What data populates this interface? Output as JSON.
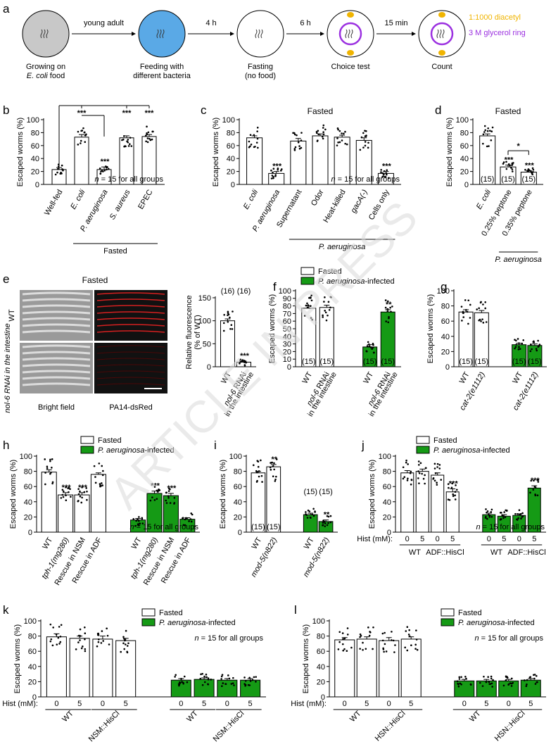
{
  "watermark": "ARTICLE IN PRESS",
  "panel_a": {
    "letter": "a",
    "steps": [
      {
        "top": "Growing on",
        "bottom": "E. coli food",
        "color": "#c8c8c8"
      },
      {
        "top": "Feeding with",
        "bottom": "different bacteria",
        "color": "#5aa9e6"
      },
      {
        "top": "Fasting",
        "bottom": "(no food)",
        "color": "#ffffff"
      },
      {
        "top": "Choice test",
        "bottom": "",
        "color": "#ffffff"
      },
      {
        "top": "Count",
        "bottom": "",
        "color": "#ffffff"
      }
    ],
    "arrows": [
      "young adult",
      "4 h",
      "6 h",
      "15 min"
    ],
    "legend": [
      {
        "label": "1:1000 diacetyl",
        "color": "#f0b400"
      },
      {
        "label": "3 M glycerol ring",
        "color": "#9b30e0"
      }
    ]
  },
  "colors": {
    "fasted": "#ffffff",
    "infected": "#159a15",
    "ring": "#9b30e0",
    "diacetyl": "#f0b400"
  },
  "legend_labels": {
    "fasted": "Fasted",
    "infected": "P. aeruginosa-infected"
  },
  "panel_e": {
    "letter": "e",
    "title": "Fasted",
    "row_labels": [
      "WT",
      "nol-6 RNAi in the intestine"
    ],
    "col_labels": [
      "Bright field",
      "PA14-dsRed"
    ]
  },
  "chart_data": [
    {
      "panel": "b",
      "type": "bar",
      "title": "",
      "ylabel": "Escaped worms (%)",
      "ylim": [
        0,
        100
      ],
      "yticks": [
        0,
        20,
        40,
        60,
        80,
        100
      ],
      "categories": [
        "Well-fed",
        "E. coli",
        "P. aeruginosa",
        "S. aureus",
        "EPEC"
      ],
      "values": [
        23,
        73,
        23,
        72,
        74
      ],
      "errors": [
        3,
        4,
        4,
        3,
        3
      ],
      "bar_colors": [
        "#ffffff",
        "#ffffff",
        "#ffffff",
        "#ffffff",
        "#ffffff"
      ],
      "annotations": [
        "",
        "",
        "***",
        "",
        ""
      ],
      "brackets": [
        {
          "label": "***",
          "from": 0,
          "to": 1
        },
        {
          "label": "***",
          "from": 0,
          "to": 3
        },
        {
          "label": "***",
          "from": 0,
          "to": 4
        },
        {
          "label": "***",
          "from": 1,
          "to": 2
        }
      ],
      "n_labels": [],
      "note": "n = 15 for all groups",
      "group_labels": [
        {
          "label": "Fasted",
          "from": 1,
          "to": 4
        }
      ]
    },
    {
      "panel": "c",
      "type": "bar",
      "title": "Fasted",
      "ylabel": "Escaped worms (%)",
      "ylim": [
        0,
        100
      ],
      "yticks": [
        0,
        20,
        40,
        60,
        80,
        100
      ],
      "categories": [
        "E. coli",
        "P. aeruginosa",
        "Supernatant",
        "Odor",
        "Heat-killed",
        "gacA(-)",
        "Cells only"
      ],
      "values": [
        72,
        17,
        67,
        75,
        73,
        68,
        17
      ],
      "errors": [
        3,
        3,
        4,
        3,
        3,
        4,
        3
      ],
      "bar_colors": [
        "#ffffff",
        "#ffffff",
        "#ffffff",
        "#ffffff",
        "#ffffff",
        "#ffffff",
        "#ffffff"
      ],
      "annotations": [
        "",
        "***",
        "",
        "",
        "",
        "",
        "***"
      ],
      "brackets": [],
      "n_labels": [],
      "note": "n = 15 for all groups",
      "group_labels": [
        {
          "label": "P. aeruginosa",
          "from": 2,
          "to": 6
        }
      ]
    },
    {
      "panel": "d",
      "type": "bar",
      "title": "Fasted",
      "ylabel": "Escaped worms (%)",
      "ylim": [
        0,
        100
      ],
      "yticks": [
        0,
        20,
        40,
        60,
        80,
        100
      ],
      "categories": [
        "E. coli",
        "0.25% peptone",
        "0.35% peptone"
      ],
      "values": [
        75,
        27,
        19
      ],
      "errors": [
        3,
        3,
        2
      ],
      "bar_colors": [
        "#ffffff",
        "#ffffff",
        "#ffffff"
      ],
      "annotations": [
        "",
        "***",
        "***"
      ],
      "brackets": [
        {
          "label": "*",
          "from": 1,
          "to": 2
        }
      ],
      "n_labels": [
        "(15)",
        "(15)",
        "(15)"
      ],
      "note": "",
      "group_labels": [
        {
          "label": "P. aeruginosa",
          "from": 1,
          "to": 2
        }
      ]
    },
    {
      "panel": "e2",
      "type": "bar",
      "title": "",
      "ylabel": "Relative fluorescence (% of WT)",
      "ylim": [
        0,
        150
      ],
      "yticks": [
        0,
        50,
        100,
        150
      ],
      "categories": [
        "WT",
        "nol-6 RNAi in the intestine"
      ],
      "values": [
        100,
        10
      ],
      "errors": [
        4,
        2
      ],
      "bar_colors": [
        "#ffffff",
        "#ffffff"
      ],
      "annotations": [
        "",
        "***"
      ],
      "brackets": [],
      "n_labels": [
        "(16)",
        "(16)"
      ],
      "note": "",
      "group_labels": []
    },
    {
      "panel": "f",
      "type": "bar",
      "title": "",
      "ylabel": "Escaped worms (%)",
      "ylim": [
        0,
        100
      ],
      "yticks": [
        0,
        10,
        20,
        30,
        40,
        50,
        60,
        70,
        80,
        90,
        100
      ],
      "categories": [
        "WT",
        "nol-6 RNAi in the intestine",
        "WT",
        "nol-6 RNAi in the intestine"
      ],
      "values": [
        77,
        78,
        26,
        72
      ],
      "errors": [
        3,
        3,
        3,
        3
      ],
      "bar_colors": [
        "#ffffff",
        "#ffffff",
        "#159a15",
        "#159a15"
      ],
      "annotations": [
        "",
        "",
        "",
        "**"
      ],
      "brackets": [],
      "n_labels": [
        "(15)",
        "(15)",
        "(15)",
        "(15)"
      ],
      "note": "",
      "group_labels": []
    },
    {
      "panel": "g",
      "type": "bar",
      "title": "",
      "ylabel": "Escaped worms (%)",
      "ylim": [
        0,
        100
      ],
      "yticks": [
        0,
        20,
        40,
        60,
        80,
        100
      ],
      "categories": [
        "WT",
        "cat-2(e1112)",
        "WT",
        "cat-2(e1112)"
      ],
      "values": [
        72,
        71,
        29,
        28
      ],
      "errors": [
        3,
        3,
        2,
        2
      ],
      "bar_colors": [
        "#ffffff",
        "#ffffff",
        "#159a15",
        "#159a15"
      ],
      "annotations": [
        "",
        "",
        "",
        ""
      ],
      "brackets": [],
      "n_labels": [
        "(15)",
        "(15)",
        "(15)",
        "(15)"
      ],
      "note": "",
      "group_labels": []
    },
    {
      "panel": "h",
      "type": "bar",
      "title": "",
      "ylabel": "Escaped worms (%)",
      "ylim": [
        0,
        100
      ],
      "yticks": [
        0,
        20,
        40,
        60,
        80,
        100
      ],
      "categories": [
        "WT",
        "tph-1(mg280)",
        "Rescue in NSM",
        "Rescue in ADF",
        "WT",
        "tph-1(mg280)",
        "Rescue in NSM",
        "Rescue in ADF"
      ],
      "values": [
        79,
        49,
        49,
        76,
        16,
        51,
        48,
        17
      ],
      "errors": [
        3,
        3,
        3,
        2,
        2,
        3,
        3,
        2
      ],
      "bar_colors": [
        "#ffffff",
        "#ffffff",
        "#ffffff",
        "#ffffff",
        "#159a15",
        "#159a15",
        "#159a15",
        "#159a15"
      ],
      "annotations": [
        "",
        "***",
        "***",
        "",
        "",
        "***",
        "***",
        ""
      ],
      "brackets": [],
      "n_labels": [],
      "note": "n = 15 for all groups",
      "group_labels": []
    },
    {
      "panel": "i",
      "type": "bar",
      "title": "",
      "ylabel": "Escaped worms (%)",
      "ylim": [
        0,
        100
      ],
      "yticks": [
        0,
        20,
        40,
        60,
        80,
        100
      ],
      "categories": [
        "WT",
        "mod-5(n822)",
        "WT",
        "mod-5(n822)"
      ],
      "values": [
        78,
        86,
        23,
        14
      ],
      "errors": [
        2,
        3,
        2,
        2
      ],
      "bar_colors": [
        "#ffffff",
        "#ffffff",
        "#159a15",
        "#159a15"
      ],
      "annotations": [
        "",
        "**",
        "",
        "**"
      ],
      "brackets": [],
      "n_labels": [
        "(15)",
        "(15)",
        "(15)",
        "(15)"
      ],
      "note": "",
      "group_labels": []
    },
    {
      "panel": "j",
      "type": "bar",
      "title": "",
      "ylabel": "Escaped worms (%)",
      "ylim": [
        0,
        100
      ],
      "yticks": [
        0,
        20,
        40,
        60,
        80,
        100
      ],
      "categories": [
        "0",
        "5",
        "0",
        "5",
        "0",
        "5",
        "0",
        "5"
      ],
      "values": [
        78,
        80,
        75,
        53,
        23,
        21,
        22,
        58
      ],
      "errors": [
        3,
        3,
        3,
        4,
        2,
        2,
        2,
        3
      ],
      "bar_colors": [
        "#ffffff",
        "#ffffff",
        "#ffffff",
        "#ffffff",
        "#159a15",
        "#159a15",
        "#159a15",
        "#159a15"
      ],
      "annotations": [
        "",
        "",
        "",
        "***",
        "",
        "",
        "",
        "***"
      ],
      "brackets": [],
      "n_labels": [],
      "note": "n = 15 for all groups",
      "xprefix": "Hist (mM):",
      "group_labels": [
        {
          "label": "WT",
          "from": 0,
          "to": 1
        },
        {
          "label": "ADF::HisCl",
          "from": 2,
          "to": 3
        },
        {
          "label": "WT",
          "from": 4,
          "to": 5
        },
        {
          "label": "ADF::HisCl",
          "from": 6,
          "to": 7
        }
      ]
    },
    {
      "panel": "k",
      "type": "bar",
      "title": "",
      "ylabel": "Escaped worms (%)",
      "ylim": [
        0,
        100
      ],
      "yticks": [
        0,
        20,
        40,
        60,
        80,
        100
      ],
      "categories": [
        "0",
        "5",
        "0",
        "5",
        "0",
        "5",
        "0",
        "5"
      ],
      "values": [
        79,
        77,
        76,
        74,
        22,
        23,
        22,
        22
      ],
      "errors": [
        4,
        3,
        4,
        3,
        2,
        2,
        2,
        2
      ],
      "bar_colors": [
        "#ffffff",
        "#ffffff",
        "#ffffff",
        "#ffffff",
        "#159a15",
        "#159a15",
        "#159a15",
        "#159a15"
      ],
      "annotations": [
        "",
        "",
        "",
        "",
        "",
        "",
        "",
        ""
      ],
      "brackets": [],
      "n_labels": [],
      "note": "n = 15 for all groups",
      "xprefix": "Hist (mM):",
      "group_labels": [
        {
          "label": "WT",
          "from": 0,
          "to": 1
        },
        {
          "label": "NSM::HisCl",
          "from": 2,
          "to": 3
        },
        {
          "label": "WT",
          "from": 4,
          "to": 5
        },
        {
          "label": "NSM::HisCl",
          "from": 6,
          "to": 7
        }
      ]
    },
    {
      "panel": "l",
      "type": "bar",
      "title": "",
      "ylabel": "Escaped worms (%)",
      "ylim": [
        0,
        100
      ],
      "yticks": [
        0,
        20,
        40,
        60,
        80,
        100
      ],
      "categories": [
        "0",
        "5",
        "0",
        "5",
        "0",
        "5",
        "0",
        "5"
      ],
      "values": [
        75,
        76,
        74,
        76,
        21,
        21,
        21,
        22
      ],
      "errors": [
        3,
        3,
        4,
        3,
        2,
        2,
        2,
        2
      ],
      "bar_colors": [
        "#ffffff",
        "#ffffff",
        "#ffffff",
        "#ffffff",
        "#159a15",
        "#159a15",
        "#159a15",
        "#159a15"
      ],
      "annotations": [
        "",
        "",
        "",
        "",
        "",
        "",
        "",
        ""
      ],
      "brackets": [],
      "n_labels": [],
      "note": "n = 15 for all groups",
      "xprefix": "Hist (mM):",
      "group_labels": [
        {
          "label": "WT",
          "from": 0,
          "to": 1
        },
        {
          "label": "HSN::HisCl",
          "from": 2,
          "to": 3
        },
        {
          "label": "WT",
          "from": 4,
          "to": 5
        },
        {
          "label": "HSN::HisCl",
          "from": 6,
          "to": 7
        }
      ]
    }
  ]
}
